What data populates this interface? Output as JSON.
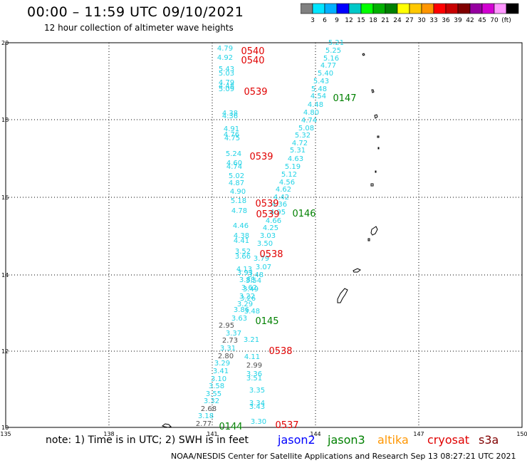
{
  "header": {
    "title": "00:00 – 11:59 UTC 09/10/2021",
    "subtitle": "12 hour collection of altimeter wave heights"
  },
  "colorbar": {
    "colors": [
      "#808080",
      "#00e5ff",
      "#00b0ff",
      "#0000ff",
      "#00c8c8",
      "#00ff00",
      "#00b000",
      "#008000",
      "#ffff00",
      "#ffc800",
      "#ff9600",
      "#ff0000",
      "#c80000",
      "#800000",
      "#9600a0",
      "#d200d2",
      "#ff96ff",
      "#000000"
    ],
    "labels": [
      "3",
      "6",
      "9",
      "12",
      "15",
      "18",
      "21",
      "24",
      "27",
      "30",
      "33",
      "36",
      "39",
      "42",
      "45",
      "70",
      "(ft)"
    ]
  },
  "map": {
    "lat_ticks": [
      "20",
      "18",
      "16",
      "14",
      "12",
      "10"
    ],
    "lon_ticks": [
      "135",
      "138",
      "141",
      "144",
      "147",
      "150"
    ],
    "swh_values": {
      "track_0539_0540": [
        "4.79",
        "4.92",
        "5.43",
        "5.03",
        "4.79",
        "4.48",
        "5.09",
        "4.38",
        "4.36",
        "4.91",
        "4.76",
        "4.75",
        "5.24",
        "4.60",
        "4.74",
        "5.02",
        "4.87",
        "4.90",
        "5.18",
        "4.78",
        "4.46",
        "4.38",
        "4.41",
        "3.52",
        "3.66",
        "4.13",
        "3.93",
        "3.88",
        "3.62",
        "3.22",
        "3.29",
        "3.86",
        "3.63",
        "2.95",
        "3.37",
        "2.73",
        "3.31",
        "2.80",
        "3.29",
        "3.41",
        "3.10",
        "3.58",
        "3.55",
        "3.32",
        "2.68",
        "3.18",
        "2.77"
      ],
      "track_0147": [
        "5.21",
        "5.25",
        "5.16",
        "4.77",
        "5.40",
        "5.43",
        "5.48",
        "4.54",
        "4.48",
        "4.80",
        "4.74",
        "5.08",
        "5.32",
        "4.72",
        "5.31",
        "4.63",
        "5.19",
        "5.12",
        "4.56",
        "4.62",
        "4.42",
        "4.36",
        "4.95",
        "4.66",
        "4.25",
        "3.03",
        "3.50",
        "3.79",
        "3.07",
        "3.48",
        "3.54",
        "3.49",
        "3.26",
        "3.48",
        "3.21",
        "4.11",
        "2.99",
        "3.36",
        "3.51",
        "3.35",
        "3.34",
        "3.43",
        "3.30"
      ]
    },
    "pass_labels": [
      {
        "text": "0540",
        "color": "#e00000"
      },
      {
        "text": "0540",
        "color": "#e00000"
      },
      {
        "text": "0539",
        "color": "#e00000"
      },
      {
        "text": "0539",
        "color": "#e00000"
      },
      {
        "text": "0539",
        "color": "#e00000"
      },
      {
        "text": "0539",
        "color": "#e00000"
      },
      {
        "text": "0538",
        "color": "#e00000"
      },
      {
        "text": "0538",
        "color": "#e00000"
      },
      {
        "text": "0537",
        "color": "#e00000"
      },
      {
        "text": "0147",
        "color": "#008000"
      },
      {
        "text": "0146",
        "color": "#008000"
      },
      {
        "text": "0145",
        "color": "#008000"
      },
      {
        "text": "0144",
        "color": "#008000"
      }
    ]
  },
  "footer": {
    "note": "note: 1) Time is in UTC; 2) SWH is in feet",
    "satellites": [
      {
        "name": "jason2",
        "color": "#0000ff"
      },
      {
        "name": "jason3",
        "color": "#008000"
      },
      {
        "name": "altika",
        "color": "#ff9600"
      },
      {
        "name": "cryosat",
        "color": "#e00000"
      },
      {
        "name": "s3a",
        "color": "#800000"
      }
    ],
    "credit": "NOAA/NESDIS Center for Satellite Applications and Research   Sep 13 08:27:21 UTC 2021"
  }
}
